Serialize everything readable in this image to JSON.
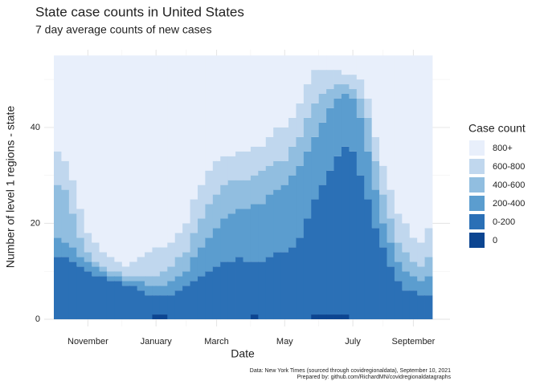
{
  "chart_data": {
    "type": "stacked-step-area",
    "title": "State case counts in United States",
    "subtitle": "7 day average counts of new cases",
    "x_label": "Date",
    "y_label": "Number of level 1 regions - state",
    "legend_title": "Case count",
    "caption_lines": [
      "Data: New York Times (sourced through covidregionaldata), September 10, 2021",
      "Prepared by: github.com/RichardMN/covidregionaldatagraphs"
    ],
    "categories": [
      null,
      null,
      null,
      null,
      "November",
      null,
      null,
      null,
      null,
      null,
      null,
      null,
      null,
      "January",
      null,
      null,
      null,
      null,
      null,
      null,
      null,
      "March",
      null,
      null,
      null,
      null,
      null,
      null,
      null,
      null,
      "May",
      null,
      null,
      null,
      null,
      null,
      null,
      null,
      null,
      "July",
      null,
      null,
      null,
      null,
      null,
      null,
      null,
      "September",
      null,
      null
    ],
    "ylim": [
      -1.5,
      56.2
    ],
    "yticks": [
      0,
      20,
      40
    ],
    "grid": true,
    "series": [
      {
        "name": "0",
        "color": "#0c4591",
        "values": [
          0,
          0,
          0,
          0,
          0,
          0,
          0,
          0,
          0,
          0,
          0,
          0,
          0,
          1,
          1,
          0,
          0,
          0,
          0,
          0,
          0,
          0,
          0,
          0,
          0,
          0,
          1,
          0,
          0,
          0,
          0,
          0,
          0,
          0,
          1,
          1,
          1,
          1,
          1,
          0,
          0,
          0,
          0,
          0,
          0,
          0,
          0,
          0,
          0,
          0
        ]
      },
      {
        "name": "0-200",
        "color": "#2b70b6",
        "values": [
          13,
          13,
          12,
          11,
          10,
          9,
          9,
          8,
          8,
          7,
          7,
          6,
          5,
          4,
          4,
          5,
          6,
          7,
          8,
          9,
          10,
          11,
          12,
          12,
          13,
          12,
          11,
          12,
          13,
          14,
          14,
          15,
          17,
          21,
          24,
          27,
          30,
          33,
          35,
          35,
          30,
          25,
          19,
          15,
          11,
          8,
          6,
          6,
          5,
          5
        ]
      },
      {
        "name": "200-400",
        "color": "#5b9dcf",
        "values": [
          4,
          3,
          3,
          2,
          2,
          2,
          1,
          1,
          1,
          1,
          1,
          2,
          2,
          2,
          2,
          3,
          3,
          3,
          5,
          6,
          7,
          8,
          9,
          10,
          10,
          11,
          12,
          12,
          13,
          13,
          14,
          15,
          15,
          14,
          13,
          13,
          13,
          12,
          11,
          11,
          12,
          10,
          8,
          5,
          5,
          4,
          4,
          3,
          3,
          4
        ]
      },
      {
        "name": "400-600",
        "color": "#91bee0",
        "values": [
          11,
          11,
          7,
          4,
          2,
          1,
          1,
          1,
          1,
          1,
          1,
          1,
          2,
          2,
          3,
          3,
          4,
          4,
          5,
          6,
          7,
          7,
          7,
          7,
          6,
          6,
          6,
          7,
          6,
          6,
          5,
          6,
          6,
          7,
          7,
          6,
          4,
          3,
          2,
          2,
          4,
          7,
          6,
          6,
          5,
          4,
          4,
          3,
          3,
          4
        ]
      },
      {
        "name": "600-800",
        "color": "#c0d7ee",
        "values": [
          7,
          6,
          7,
          6,
          4,
          4,
          3,
          3,
          2,
          2,
          3,
          4,
          5,
          6,
          5,
          5,
          5,
          6,
          7,
          7,
          7,
          7,
          6,
          5,
          6,
          6,
          6,
          5,
          6,
          7,
          7,
          6,
          7,
          7,
          7,
          5,
          4,
          3,
          2,
          3,
          4,
          4,
          5,
          6,
          6,
          6,
          6,
          5,
          5,
          6
        ]
      },
      {
        "name": "800+",
        "color": "#e8effb",
        "values": [
          20,
          22,
          26,
          32,
          37,
          39,
          41,
          42,
          43,
          44,
          43,
          42,
          41,
          40,
          40,
          39,
          37,
          35,
          30,
          27,
          24,
          22,
          21,
          21,
          20,
          20,
          19,
          19,
          17,
          15,
          15,
          13,
          10,
          6,
          3,
          3,
          3,
          3,
          4,
          4,
          5,
          9,
          17,
          23,
          28,
          33,
          35,
          38,
          39,
          36
        ]
      }
    ]
  }
}
